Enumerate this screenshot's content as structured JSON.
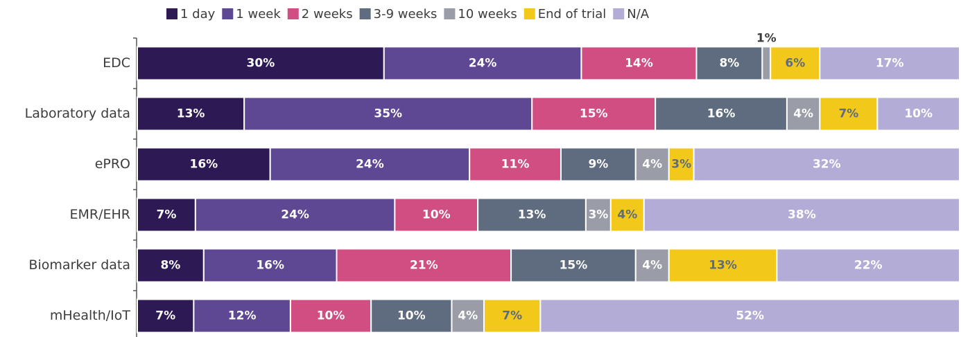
{
  "chart_data": {
    "type": "stacked-bar-horizontal",
    "categories": [
      "EDC",
      "Laboratory data",
      "ePRO",
      "EMR/EHR",
      "Biomarker data",
      "mHealth/IoT"
    ],
    "series": [
      {
        "name": "1 day",
        "color": "#2d1a54",
        "values": [
          30,
          13,
          16,
          7,
          8,
          7
        ],
        "value_labels": [
          "30%",
          "13%",
          "16%",
          "7%",
          "8%",
          "7%"
        ]
      },
      {
        "name": "1 week",
        "color": "#5e4793",
        "values": [
          24,
          35,
          24,
          24,
          16,
          12
        ],
        "value_labels": [
          "24%",
          "35%",
          "24%",
          "24%",
          "16%",
          "12%"
        ]
      },
      {
        "name": "2 weeks",
        "color": "#d04e82",
        "values": [
          14,
          15,
          11,
          10,
          21,
          10
        ],
        "value_labels": [
          "14%",
          "15%",
          "11%",
          "10%",
          "21%",
          "10%"
        ]
      },
      {
        "name": "3-9 weeks",
        "color": "#5f6b7e",
        "values": [
          8,
          16,
          9,
          13,
          15,
          10
        ],
        "value_labels": [
          "8%",
          "16%",
          "9%",
          "13%",
          "15%",
          "10%"
        ]
      },
      {
        "name": "10 weeks",
        "color": "#9a9ca8",
        "values": [
          1,
          4,
          4,
          3,
          4,
          4
        ],
        "value_labels": [
          "1%",
          "4%",
          "4%",
          "3%",
          "4%",
          "4%"
        ]
      },
      {
        "name": "End of trial",
        "color": "#f2c81a",
        "values": [
          6,
          7,
          3,
          4,
          13,
          7
        ],
        "value_labels": [
          "6%",
          "7%",
          "3%",
          "4%",
          "13%",
          "7%"
        ]
      },
      {
        "name": "N/A",
        "color": "#b3acd6",
        "values": [
          17,
          10,
          32,
          38,
          22,
          52
        ],
        "value_labels": [
          "17%",
          "10%",
          "32%",
          "38%",
          "22%",
          "52%"
        ]
      }
    ],
    "legend": "top"
  }
}
